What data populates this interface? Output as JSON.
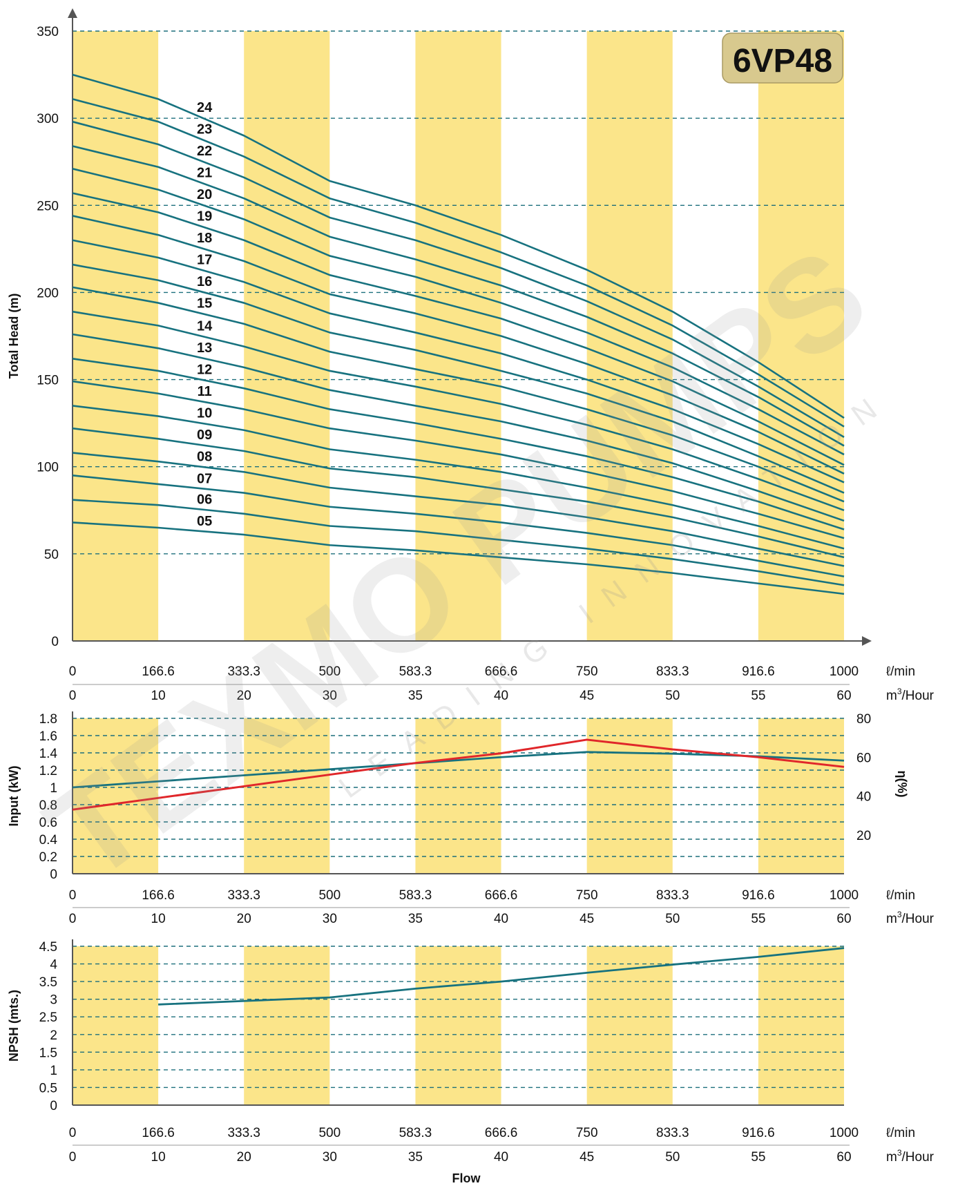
{
  "colors": {
    "band": "#fbe58a",
    "curve": "#17727f",
    "efficiency": "#e0262a",
    "grid": "#1c6f7c",
    "axis": "#555555",
    "model_box": "#d8c98e"
  },
  "model_label": "6VP48",
  "watermark": {
    "main": "TEXMO PUMPS",
    "sub": "LEADING INNOVATION"
  },
  "flow_axis": {
    "lpm_ticks": [
      "0",
      "166.6",
      "333.3",
      "500",
      "583.3",
      "666.6",
      "750",
      "833.3",
      "916.6",
      "1000"
    ],
    "m3h_ticks": [
      "0",
      "10",
      "20",
      "30",
      "35",
      "40",
      "45",
      "50",
      "55",
      "60"
    ],
    "lpm_unit": "ℓ/min",
    "m3h_unit_base": "m",
    "m3h_unit_sup": "3",
    "m3h_unit_rest": "/Hour",
    "title": "Flow"
  },
  "chart_data": [
    {
      "type": "line",
      "name": "head",
      "ylabel": "Total Head (m)",
      "ylim": [
        0,
        350
      ],
      "yticks": [
        "0",
        "50",
        "100",
        "150",
        "200",
        "250",
        "300",
        "350"
      ],
      "x_positions": [
        0,
        1,
        2,
        3,
        4,
        5,
        6,
        7,
        8,
        9
      ],
      "grid": true,
      "series": [
        {
          "name": "24",
          "values": [
            325,
            311,
            290,
            264,
            250,
            233,
            213,
            189,
            160,
            128
          ]
        },
        {
          "name": "23",
          "values": [
            311,
            298,
            278,
            254,
            240,
            223,
            204,
            181,
            153,
            123
          ]
        },
        {
          "name": "22",
          "values": [
            298,
            285,
            266,
            243,
            230,
            214,
            195,
            173,
            146,
            117
          ]
        },
        {
          "name": "21",
          "values": [
            284,
            272,
            254,
            232,
            219,
            204,
            186,
            165,
            140,
            112
          ]
        },
        {
          "name": "20",
          "values": [
            271,
            259,
            242,
            221,
            209,
            194,
            177,
            157,
            133,
            107
          ]
        },
        {
          "name": "19",
          "values": [
            257,
            246,
            230,
            210,
            198,
            185,
            168,
            149,
            126,
            101
          ]
        },
        {
          "name": "18",
          "values": [
            244,
            233,
            218,
            199,
            188,
            175,
            159,
            141,
            120,
            96
          ]
        },
        {
          "name": "17",
          "values": [
            230,
            220,
            206,
            188,
            177,
            165,
            150,
            133,
            113,
            91
          ]
        },
        {
          "name": "16",
          "values": [
            216,
            207,
            194,
            177,
            167,
            155,
            142,
            126,
            106,
            85
          ]
        },
        {
          "name": "15",
          "values": [
            203,
            194,
            182,
            166,
            156,
            146,
            133,
            118,
            100,
            80
          ]
        },
        {
          "name": "14",
          "values": [
            189,
            181,
            169,
            155,
            146,
            136,
            124,
            110,
            93,
            75
          ]
        },
        {
          "name": "13",
          "values": [
            176,
            168,
            157,
            144,
            135,
            126,
            115,
            102,
            86,
            69
          ]
        },
        {
          "name": "12",
          "values": [
            162,
            155,
            145,
            133,
            125,
            116,
            106,
            94,
            80,
            64
          ]
        },
        {
          "name": "11",
          "values": [
            149,
            142,
            133,
            122,
            115,
            107,
            97,
            86,
            73,
            59
          ]
        },
        {
          "name": "10",
          "values": [
            135,
            129,
            121,
            110,
            104,
            97,
            88,
            78,
            66,
            53
          ]
        },
        {
          "name": "09",
          "values": [
            122,
            116,
            109,
            99,
            94,
            87,
            80,
            71,
            60,
            48
          ]
        },
        {
          "name": "08",
          "values": [
            108,
            103,
            97,
            88,
            83,
            78,
            71,
            63,
            53,
            43
          ]
        },
        {
          "name": "07",
          "values": [
            95,
            90,
            85,
            77,
            73,
            68,
            62,
            55,
            46,
            37
          ]
        },
        {
          "name": "06",
          "values": [
            81,
            78,
            73,
            66,
            63,
            58,
            53,
            47,
            40,
            32
          ]
        },
        {
          "name": "05",
          "values": [
            68,
            65,
            61,
            55,
            52,
            48,
            44,
            39,
            33,
            27
          ]
        }
      ]
    },
    {
      "type": "line",
      "name": "input-efficiency",
      "ylabel": "Input (kW)",
      "ylim": [
        0,
        1.8
      ],
      "yticks": [
        "0",
        "0.2",
        "0.4",
        "0.6",
        "0.8",
        "1",
        "1.2",
        "1.4",
        "1.6",
        "1.8"
      ],
      "y2label": "η(%)",
      "y2lim": [
        0,
        80
      ],
      "y2ticks": [
        "20",
        "40",
        "60",
        "80"
      ],
      "x_positions": [
        0,
        1,
        2,
        3,
        4,
        5,
        6,
        7,
        8,
        9
      ],
      "grid": true,
      "series": [
        {
          "name": "Input (kW)",
          "axis": "left",
          "values": [
            1.0,
            1.07,
            1.14,
            1.21,
            1.28,
            1.35,
            1.41,
            1.39,
            1.36,
            1.31
          ]
        },
        {
          "name": "η(%)",
          "axis": "right",
          "values": [
            33,
            39,
            45,
            51,
            57,
            62,
            69,
            64,
            60,
            55
          ]
        }
      ]
    },
    {
      "type": "line",
      "name": "npsh",
      "ylabel": "NPSH (mts.)",
      "ylim": [
        0,
        4.5
      ],
      "yticks": [
        "0",
        "0.5",
        "1",
        "1.5",
        "2",
        "2.5",
        "3",
        "3.5",
        "4",
        "4.5"
      ],
      "x_positions": [
        1,
        2,
        3,
        4,
        5,
        6,
        7,
        8,
        9
      ],
      "grid": true,
      "series": [
        {
          "name": "NPSH (mts.)",
          "values": [
            2.85,
            2.95,
            3.05,
            3.3,
            3.5,
            3.75,
            3.98,
            4.2,
            4.45
          ]
        }
      ]
    }
  ]
}
